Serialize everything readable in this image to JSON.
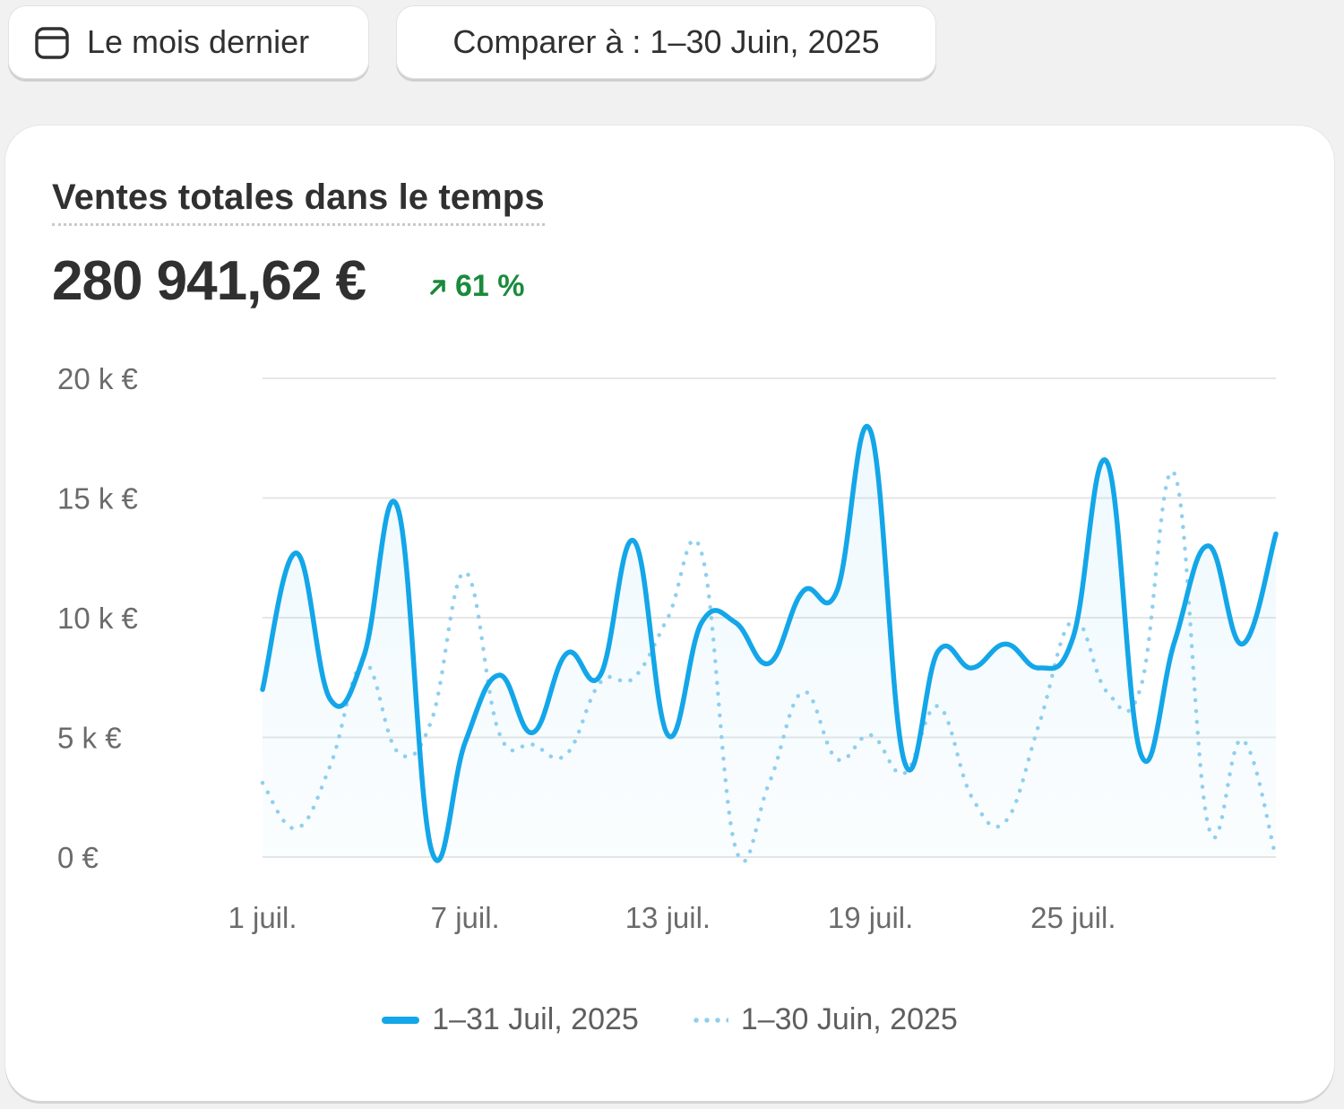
{
  "toolbar": {
    "period_label": "Le mois dernier",
    "compare_label": "Comparer à : 1–30 Juin, 2025"
  },
  "card": {
    "title": "Ventes totales dans le temps",
    "total": "280 941,62 €",
    "delta": "61 %",
    "delta_direction": "up"
  },
  "colors": {
    "current_series": "#13a6e8",
    "previous_series": "#8fcfee",
    "delta_positive": "#1a8a3c"
  },
  "chart_data": {
    "type": "line",
    "title": "Ventes totales dans le temps",
    "xlabel": "",
    "ylabel": "",
    "ylim": [
      0,
      20000
    ],
    "y_ticks": [
      0,
      5000,
      10000,
      15000,
      20000
    ],
    "y_tick_labels": [
      "0 €",
      "5 k €",
      "10 k €",
      "15 k €",
      "20 k €"
    ],
    "x_ticks": [
      1,
      7,
      13,
      19,
      25
    ],
    "x_tick_labels": [
      "1 juil.",
      "7 juil.",
      "13 juil.",
      "19 juil.",
      "25 juil."
    ],
    "grid": true,
    "legend_position": "bottom",
    "x": [
      1,
      2,
      3,
      4,
      5,
      6,
      7,
      8,
      9,
      10,
      11,
      12,
      13,
      14,
      15,
      16,
      17,
      18,
      19,
      20,
      21,
      22,
      23,
      24,
      25,
      26,
      27,
      28,
      29,
      30,
      31
    ],
    "series": [
      {
        "name": "1–31 Juil, 2025",
        "style": "solid",
        "values": [
          7000,
          12700,
          6600,
          8400,
          14600,
          300,
          4800,
          7600,
          5200,
          8500,
          7600,
          13200,
          5100,
          9800,
          9800,
          8100,
          11100,
          11100,
          17800,
          4000,
          8600,
          7900,
          8900,
          7900,
          9200,
          16500,
          4300,
          9000,
          13000,
          8900,
          13500
        ]
      },
      {
        "name": "1–30 Juin, 2025",
        "style": "dotted",
        "values": [
          3100,
          1200,
          3800,
          8100,
          4400,
          5700,
          11900,
          5200,
          4700,
          4300,
          7300,
          7500,
          10000,
          12700,
          400,
          3100,
          6900,
          4100,
          5100,
          3500,
          6300,
          2500,
          1500,
          5600,
          9900,
          6900,
          7100,
          16000,
          1300,
          4900,
          0
        ]
      }
    ]
  }
}
